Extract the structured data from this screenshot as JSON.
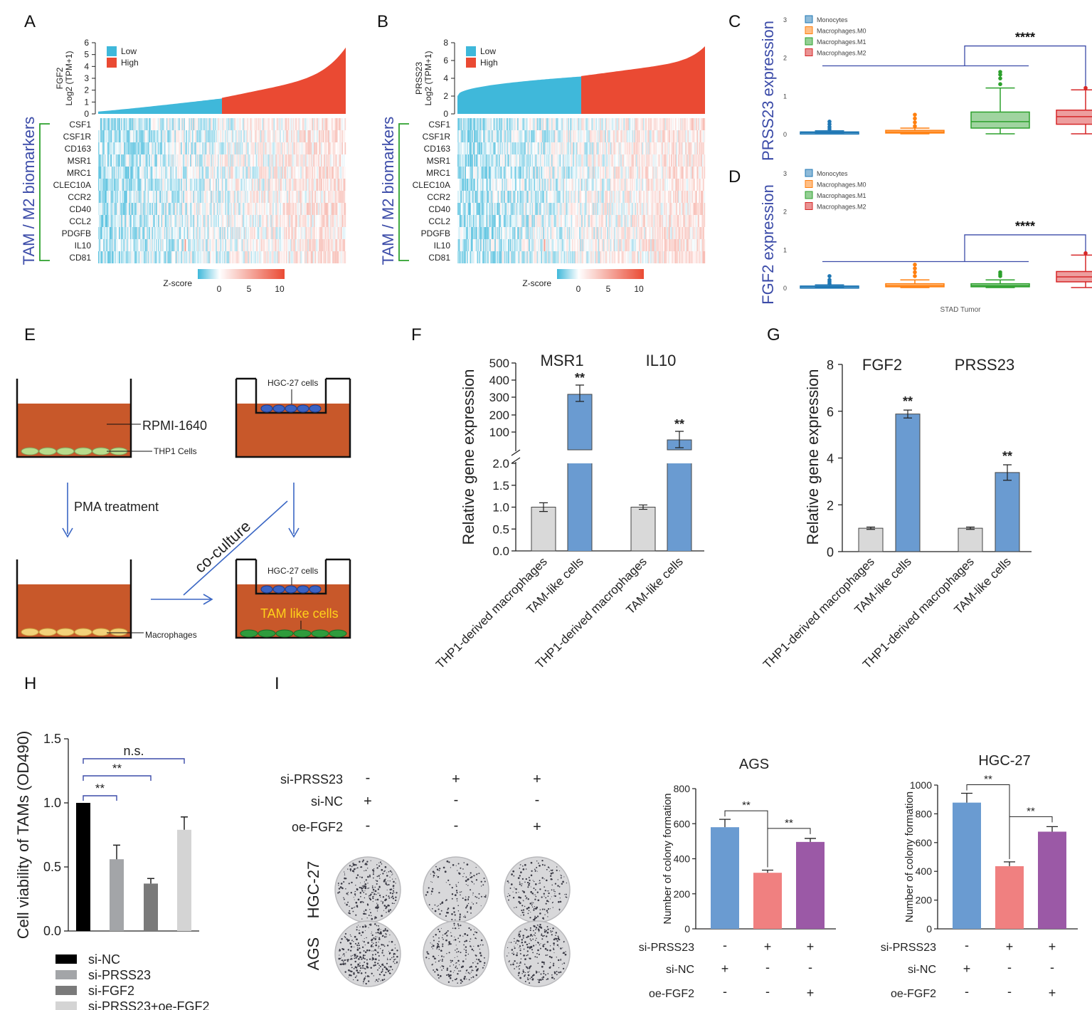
{
  "panel_letters": [
    "A",
    "B",
    "C",
    "D",
    "E",
    "F",
    "G",
    "H",
    "I"
  ],
  "colors": {
    "low": "#3fb8da",
    "high": "#ea4a33",
    "bracket_green": "#2ca02c",
    "tam_label": "#3b4ba8",
    "bar_gray": "#d9d9d9",
    "bar_blue": "#6a9bd1",
    "well": "#c8582a",
    "mono": "#1f77b4",
    "m0": "#ff7f0e",
    "m1": "#2ca02c",
    "m2": "#d62728",
    "h_nc": "#000000",
    "h_prss": "#a3a5a8",
    "h_fgf": "#7a7a7a",
    "h_combo": "#d4d4d4",
    "col_blue": "#6a9bd1",
    "col_pink": "#f08080",
    "col_purple": "#9b59a6"
  },
  "heatmap": {
    "tam_label": "TAM / M2 biomarkers",
    "genes": [
      "CSF1",
      "CSF1R",
      "CD163",
      "MSR1",
      "MRC1",
      "CLEC10A",
      "CCR2",
      "CD40",
      "CCL2",
      "PDGFB",
      "IL10",
      "CD81"
    ],
    "zscore_label": "Z-score",
    "zscore_ticks": [
      "0",
      "5",
      "10"
    ],
    "legend_low": "Low",
    "legend_high": "High",
    "A": {
      "ylabel_gene": "FGF2",
      "ylabel_unit": "Log2 (TPM+1)",
      "yticks": [
        "0",
        "1",
        "2",
        "3",
        "4",
        "5",
        "6"
      ],
      "ymax": 6,
      "low_end": 1.3,
      "high_start": 1.35,
      "high_end": 5.6
    },
    "B": {
      "ylabel_gene": "PRSS23",
      "ylabel_unit": "Log2 (TPM+1)",
      "yticks": [
        "0",
        "2",
        "4",
        "6",
        "8"
      ],
      "ymax": 8,
      "low_end": 4.2,
      "high_start": 4.25,
      "high_end": 7.6
    }
  },
  "chart_data": [
    {
      "panel": "C",
      "type": "box",
      "ylabel": "PRSS23 expression",
      "yticks": [
        "0",
        "1",
        "2",
        "3"
      ],
      "ylim": [
        0,
        3
      ],
      "legend": [
        "Monocytes",
        "Macrophages.M0",
        "Macrophages.M1",
        "Macrophages.M2"
      ],
      "significance": "****",
      "boxes": [
        {
          "q1": 0.01,
          "median": 0.03,
          "q3": 0.05,
          "wlo": 0,
          "whi": 0.08,
          "outliers": [
            0.12,
            0.18,
            0.25,
            0.32
          ]
        },
        {
          "q1": 0.02,
          "median": 0.05,
          "q3": 0.09,
          "wlo": 0,
          "whi": 0.15,
          "outliers": [
            0.2,
            0.3,
            0.4,
            0.5
          ]
        },
        {
          "q1": 0.15,
          "median": 0.32,
          "q3": 0.57,
          "wlo": 0,
          "whi": 1.2,
          "outliers": [
            1.3,
            1.45,
            1.55,
            1.62
          ]
        },
        {
          "q1": 0.25,
          "median": 0.45,
          "q3": 0.62,
          "wlo": 0,
          "whi": 1.15,
          "outliers": [
            1.2
          ]
        }
      ]
    },
    {
      "panel": "D",
      "type": "box",
      "ylabel": "FGF2 expression",
      "yticks": [
        "0",
        "1",
        "2",
        "3"
      ],
      "ylim": [
        0,
        3
      ],
      "xlabel": "STAD Tumor",
      "legend": [
        "Monocytes",
        "Macrophages.M0",
        "Macrophages.M1",
        "Macrophages.M2"
      ],
      "significance": "****",
      "boxes": [
        {
          "q1": 0.005,
          "median": 0.02,
          "q3": 0.04,
          "wlo": 0,
          "whi": 0.07,
          "outliers": [
            0.1,
            0.15,
            0.2,
            0.3
          ]
        },
        {
          "q1": 0.02,
          "median": 0.05,
          "q3": 0.1,
          "wlo": 0,
          "whi": 0.2,
          "outliers": [
            0.3,
            0.4,
            0.5,
            0.6
          ]
        },
        {
          "q1": 0.02,
          "median": 0.05,
          "q3": 0.1,
          "wlo": 0,
          "whi": 0.2,
          "outliers": [
            0.3,
            0.35,
            0.4
          ]
        },
        {
          "q1": 0.15,
          "median": 0.28,
          "q3": 0.42,
          "wlo": 0,
          "whi": 0.85,
          "outliers": [
            0.9
          ]
        }
      ]
    },
    {
      "panel": "F",
      "type": "bar",
      "ylabel": "Relative gene expression",
      "groups": [
        "MSR1",
        "IL10"
      ],
      "categories": [
        "THP1-derived macrophages",
        "TAM-like cells",
        "THP1-derived macrophages",
        "TAM-like cells"
      ],
      "values": [
        1.0,
        320,
        1.0,
        58
      ],
      "errors": [
        0.1,
        55,
        0.05,
        45
      ],
      "sig": [
        "",
        "**",
        "",
        "**"
      ],
      "yticks_lower": [
        "0.0",
        "0.5",
        "1.0",
        "1.5",
        "2.0"
      ],
      "yticks_upper": [
        "100",
        "200",
        "300",
        "400",
        "500"
      ]
    },
    {
      "panel": "G",
      "type": "bar",
      "ylabel": "Relative gene expression",
      "groups": [
        "FGF2",
        "PRSS23"
      ],
      "categories": [
        "THP1-derived macrophages",
        "TAM-like cells",
        "THP1-derived macrophages",
        "TAM-like cells"
      ],
      "values": [
        1.0,
        5.88,
        1.0,
        3.38
      ],
      "errors": [
        0.05,
        0.17,
        0.05,
        0.33
      ],
      "sig": [
        "",
        "**",
        "",
        "**"
      ],
      "yticks": [
        "0",
        "2",
        "4",
        "6",
        "8"
      ],
      "ylim": [
        0,
        8
      ]
    },
    {
      "panel": "H",
      "type": "bar",
      "ylabel": "Cell viability of TAMs (OD490)",
      "categories": [
        "si-NC",
        "si-PRSS23",
        "si-FGF2",
        "si-PRSS23+oe-FGF2"
      ],
      "values": [
        1.0,
        0.56,
        0.37,
        0.79
      ],
      "errors": [
        0,
        0.11,
        0.04,
        0.1
      ],
      "yticks": [
        "0.0",
        "0.5",
        "1.0",
        "1.5"
      ],
      "ylim": [
        0,
        1.5
      ],
      "brackets": [
        "**",
        "**",
        "n.s."
      ]
    },
    {
      "panel": "I-AGS",
      "type": "bar",
      "title": "AGS",
      "ylabel": "Number of colony formation",
      "values": [
        580,
        320,
        496
      ],
      "errors": [
        45,
        15,
        20
      ],
      "yticks": [
        "0",
        "200",
        "400",
        "600",
        "800"
      ],
      "ylim": [
        0,
        800
      ],
      "brackets": [
        "**",
        "**"
      ]
    },
    {
      "panel": "I-HGC27",
      "type": "bar",
      "title": "HGC-27",
      "ylabel": "Number of colony formation",
      "values": [
        878,
        436,
        676
      ],
      "errors": [
        65,
        30,
        35
      ],
      "yticks": [
        "0",
        "200",
        "400",
        "600",
        "800",
        "1000"
      ],
      "ylim": [
        0,
        1000
      ],
      "brackets": [
        "**",
        "**"
      ]
    }
  ],
  "schematic": {
    "rpmi": "RPMI-1640",
    "thp1": "THP1 Cells",
    "hgc27_cells": "HGC-27 cells",
    "pma": "PMA treatment",
    "coculture": "co-culture",
    "macrophages": "Macrophages",
    "tam_like": "TAM like cells"
  },
  "conditions": {
    "labels": [
      "si-PRSS23",
      "si-NC",
      "oe-FGF2"
    ],
    "signs": [
      [
        "-",
        "+",
        "+"
      ],
      [
        "+",
        "-",
        "-"
      ],
      [
        "-",
        "-",
        "+"
      ]
    ]
  },
  "plates": {
    "rows": [
      "HGC-27",
      "AGS"
    ]
  }
}
